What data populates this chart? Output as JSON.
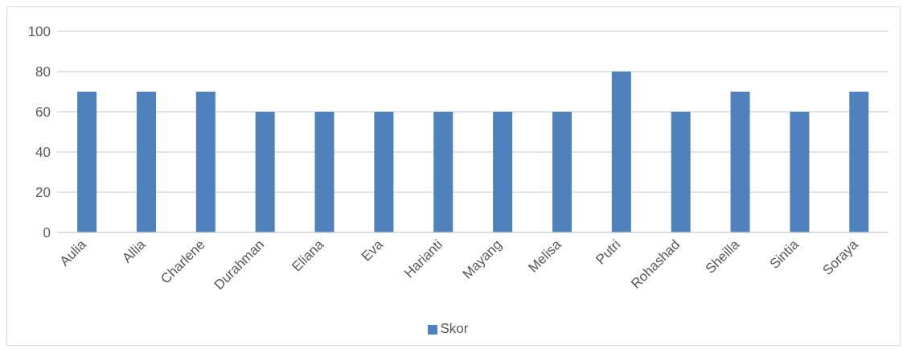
{
  "chart_data": {
    "type": "bar",
    "categories": [
      "Aulia",
      "Allia",
      "Charlene",
      "Durahman",
      "Eliana",
      "Eva",
      "Harianti",
      "Mayang",
      "Melisa",
      "Putri",
      "Rohashad",
      "Sheilla",
      "Sintia",
      "Soraya"
    ],
    "series": [
      {
        "name": "Skor",
        "color": "#4f81bd",
        "values": [
          70,
          70,
          70,
          60,
          60,
          60,
          60,
          60,
          60,
          80,
          60,
          70,
          60,
          70
        ]
      }
    ],
    "ylim": [
      0,
      100
    ],
    "yticks": [
      0,
      20,
      40,
      60,
      80,
      100
    ],
    "grid": "y",
    "legend": "bottom"
  }
}
